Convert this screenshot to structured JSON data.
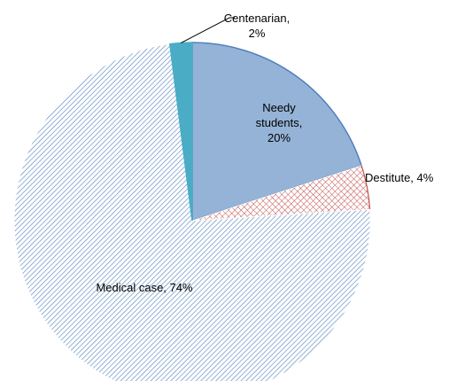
{
  "chart_data": {
    "type": "pie",
    "data_labels": [
      "Needy students, 20%",
      "Destitute, 4%",
      "Medical case, 74%",
      "Centenarian, 2%"
    ],
    "values": [
      20,
      4,
      74,
      2
    ],
    "colors": [
      "#95b3d7",
      "#c0504d",
      "#4f81bd",
      "#4bacc6"
    ],
    "fills": [
      "solid",
      "dots",
      "hatch",
      "solid"
    ],
    "start_angle": 90,
    "direction": "clockwise"
  }
}
